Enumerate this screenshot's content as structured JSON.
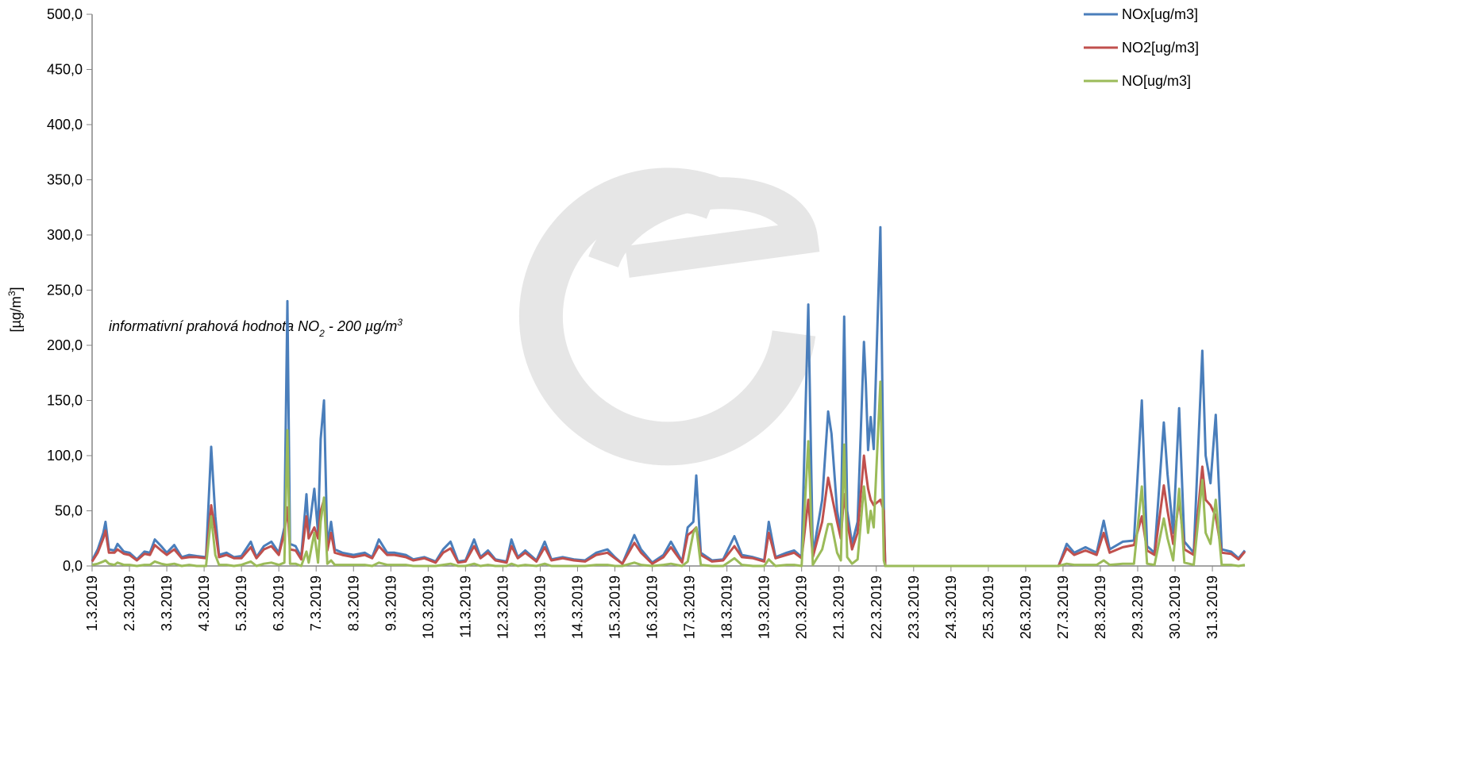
{
  "chart_data": {
    "type": "line",
    "y_label_parts": [
      "[µg/m",
      "3",
      "]"
    ],
    "annotation_parts": [
      "informativní prahová hodnota NO",
      "2",
      " - 200 µg/m",
      "3"
    ],
    "annotation_color": "#ff0000",
    "legend": "top-right",
    "grid": false,
    "xlim": [
      1,
      31.87
    ],
    "xticks": [
      {
        "value": 1,
        "label": "1.3.2019"
      },
      {
        "value": 2,
        "label": "2.3.2019"
      },
      {
        "value": 3,
        "label": "3.3.2019"
      },
      {
        "value": 4,
        "label": "4.3.2019"
      },
      {
        "value": 5,
        "label": "5.3.2019"
      },
      {
        "value": 6,
        "label": "6.3.2019"
      },
      {
        "value": 7,
        "label": "7.3.2019"
      },
      {
        "value": 8,
        "label": "8.3.2019"
      },
      {
        "value": 9,
        "label": "9.3.2019"
      },
      {
        "value": 10,
        "label": "10.3.2019"
      },
      {
        "value": 11,
        "label": "11.3.2019"
      },
      {
        "value": 12,
        "label": "12.3.2019"
      },
      {
        "value": 13,
        "label": "13.3.2019"
      },
      {
        "value": 14,
        "label": "14.3.2019"
      },
      {
        "value": 15,
        "label": "15.3.2019"
      },
      {
        "value": 16,
        "label": "16.3.2019"
      },
      {
        "value": 17,
        "label": "17.3.2019"
      },
      {
        "value": 18,
        "label": "18.3.2019"
      },
      {
        "value": 19,
        "label": "19.3.2019"
      },
      {
        "value": 20,
        "label": "20.3.2019"
      },
      {
        "value": 21,
        "label": "21.3.2019"
      },
      {
        "value": 22,
        "label": "22.3.2019"
      },
      {
        "value": 23,
        "label": "23.3.2019"
      },
      {
        "value": 24,
        "label": "24.3.2019"
      },
      {
        "value": 25,
        "label": "25.3.2019"
      },
      {
        "value": 26,
        "label": "26.3.2019"
      },
      {
        "value": 27,
        "label": "27.3.2019"
      },
      {
        "value": 28,
        "label": "28.3.2019"
      },
      {
        "value": 29,
        "label": "29.3.2019"
      },
      {
        "value": 30,
        "label": "30.3.2019"
      },
      {
        "value": 31,
        "label": "31.3.2019"
      }
    ],
    "ylim": [
      0,
      500
    ],
    "yticks": [
      {
        "value": 0,
        "label": "0,0"
      },
      {
        "value": 50,
        "label": "50,0"
      },
      {
        "value": 100,
        "label": "100,0"
      },
      {
        "value": 150,
        "label": "150,0"
      },
      {
        "value": 200,
        "label": "200,0"
      },
      {
        "value": 250,
        "label": "250,0"
      },
      {
        "value": 300,
        "label": "300,0"
      },
      {
        "value": 350,
        "label": "350,0"
      },
      {
        "value": 400,
        "label": "400,0"
      },
      {
        "value": 450,
        "label": "450,0"
      },
      {
        "value": 500,
        "label": "500,0"
      }
    ],
    "x": [
      1.0,
      1.15,
      1.3,
      1.36,
      1.45,
      1.6,
      1.68,
      1.85,
      2.0,
      2.2,
      2.4,
      2.55,
      2.68,
      2.85,
      3.0,
      3.2,
      3.4,
      3.6,
      3.8,
      4.05,
      4.19,
      4.3,
      4.4,
      4.6,
      4.8,
      5.0,
      5.25,
      5.4,
      5.6,
      5.8,
      6.0,
      6.15,
      6.23,
      6.3,
      6.45,
      6.6,
      6.74,
      6.8,
      6.95,
      7.05,
      7.12,
      7.21,
      7.3,
      7.4,
      7.5,
      7.7,
      8.0,
      8.3,
      8.5,
      8.68,
      8.9,
      9.1,
      9.4,
      9.6,
      9.9,
      10.2,
      10.4,
      10.6,
      10.8,
      11.0,
      11.23,
      11.4,
      11.6,
      11.8,
      12.1,
      12.23,
      12.4,
      12.6,
      12.9,
      13.12,
      13.3,
      13.6,
      13.9,
      14.2,
      14.5,
      14.8,
      15.0,
      15.2,
      15.52,
      15.7,
      16.0,
      16.3,
      16.5,
      16.8,
      16.95,
      17.1,
      17.18,
      17.3,
      17.6,
      17.9,
      18.2,
      18.4,
      18.7,
      19.0,
      19.12,
      19.3,
      19.6,
      19.8,
      20.0,
      20.18,
      20.3,
      20.55,
      20.71,
      20.8,
      20.95,
      21.05,
      21.14,
      21.22,
      21.35,
      21.5,
      21.67,
      21.72,
      21.78,
      21.85,
      21.93,
      22.11,
      22.2,
      22.24,
      26.88,
      27.1,
      27.3,
      27.6,
      27.9,
      28.09,
      28.25,
      28.6,
      28.9,
      29.11,
      29.25,
      29.45,
      29.7,
      29.8,
      29.95,
      30.11,
      30.25,
      30.5,
      30.73,
      30.82,
      30.95,
      31.09,
      31.25,
      31.5,
      31.7,
      31.87
    ],
    "series": [
      {
        "name": "NOx[ug/m3]",
        "color": "#4a7ebb",
        "values": [
          5,
          15,
          30,
          40,
          15,
          14,
          20,
          13,
          12,
          6,
          13,
          12,
          24,
          18,
          12,
          19,
          8,
          10,
          9,
          8,
          108,
          45,
          10,
          12,
          8,
          9,
          22,
          8,
          18,
          22,
          12,
          35,
          240,
          20,
          18,
          8,
          65,
          30,
          70,
          30,
          115,
          150,
          18,
          40,
          15,
          12,
          10,
          12,
          8,
          24,
          12,
          12,
          10,
          6,
          8,
          4,
          15,
          22,
          4,
          5,
          24,
          8,
          14,
          6,
          4,
          24,
          8,
          14,
          5,
          22,
          6,
          8,
          6,
          5,
          12,
          15,
          8,
          2,
          28,
          15,
          3,
          10,
          22,
          4,
          35,
          40,
          82,
          12,
          5,
          6,
          27,
          10,
          8,
          5,
          40,
          8,
          12,
          14,
          8,
          237,
          10,
          60,
          140,
          120,
          50,
          30,
          226,
          50,
          20,
          40,
          203,
          165,
          105,
          135,
          106,
          307,
          55,
          0,
          0,
          20,
          12,
          17,
          12,
          41,
          15,
          22,
          23,
          150,
          18,
          12,
          130,
          83,
          30,
          143,
          22,
          12,
          195,
          100,
          75,
          137,
          15,
          13,
          7,
          14
        ]
      },
      {
        "name": "NO2[ug/m3]",
        "color": "#c0504d",
        "values": [
          4,
          12,
          25,
          32,
          12,
          12,
          15,
          11,
          10,
          5,
          11,
          10,
          19,
          14,
          10,
          15,
          7,
          8,
          8,
          7,
          55,
          32,
          8,
          10,
          7,
          7,
          17,
          7,
          15,
          18,
          10,
          30,
          53,
          15,
          14,
          6,
          45,
          25,
          35,
          25,
          50,
          60,
          14,
          30,
          12,
          10,
          8,
          10,
          7,
          18,
          10,
          10,
          8,
          5,
          7,
          3,
          12,
          16,
          3,
          4,
          18,
          7,
          12,
          5,
          3,
          18,
          7,
          12,
          4,
          17,
          5,
          7,
          5,
          4,
          10,
          12,
          7,
          2,
          21,
          12,
          2,
          8,
          17,
          3,
          28,
          32,
          35,
          10,
          4,
          5,
          18,
          8,
          7,
          4,
          30,
          7,
          10,
          12,
          7,
          60,
          8,
          40,
          80,
          65,
          40,
          25,
          65,
          40,
          15,
          30,
          100,
          85,
          70,
          60,
          55,
          60,
          50,
          0,
          0,
          16,
          10,
          14,
          10,
          30,
          12,
          17,
          19,
          45,
          14,
          10,
          73,
          50,
          20,
          60,
          15,
          10,
          90,
          60,
          55,
          45,
          12,
          11,
          6,
          13
        ]
      },
      {
        "name": "NO[ug/m3]",
        "color": "#9bbb59",
        "values": [
          1,
          2,
          4,
          5,
          2,
          1,
          3,
          1,
          1,
          0,
          1,
          1,
          4,
          2,
          1,
          2,
          0,
          1,
          0,
          0,
          45,
          10,
          1,
          1,
          0,
          1,
          4,
          0,
          2,
          3,
          1,
          3,
          123,
          2,
          2,
          0,
          13,
          3,
          30,
          3,
          40,
          62,
          2,
          5,
          1,
          1,
          1,
          1,
          0,
          3,
          1,
          1,
          1,
          0,
          0,
          0,
          1,
          2,
          0,
          0,
          2,
          0,
          1,
          0,
          0,
          2,
          0,
          1,
          0,
          2,
          0,
          0,
          0,
          0,
          1,
          1,
          0,
          0,
          3,
          1,
          0,
          1,
          2,
          0,
          4,
          30,
          35,
          1,
          0,
          0,
          7,
          1,
          0,
          0,
          6,
          0,
          1,
          1,
          0,
          113,
          1,
          15,
          38,
          38,
          12,
          5,
          110,
          8,
          2,
          6,
          72,
          55,
          30,
          50,
          35,
          167,
          5,
          0,
          0,
          2,
          1,
          1,
          1,
          5,
          1,
          2,
          2,
          72,
          2,
          1,
          43,
          25,
          5,
          70,
          3,
          1,
          78,
          30,
          20,
          60,
          1,
          1,
          0,
          1
        ]
      }
    ]
  }
}
